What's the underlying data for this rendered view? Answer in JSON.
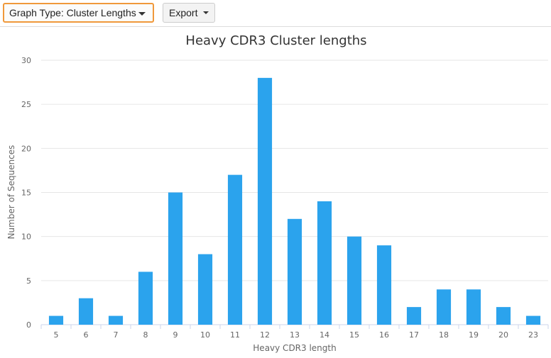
{
  "toolbar": {
    "graph_type_label": "Graph Type: Cluster Lengths",
    "export_label": "Export"
  },
  "chart_data": {
    "type": "bar",
    "title": "Heavy CDR3 Cluster lengths",
    "xlabel": "Heavy CDR3 length",
    "ylabel": "Number of Sequences",
    "categories": [
      "5",
      "6",
      "7",
      "8",
      "9",
      "10",
      "11",
      "12",
      "13",
      "14",
      "15",
      "16",
      "17",
      "18",
      "19",
      "20",
      "23"
    ],
    "values": [
      1,
      3,
      1,
      6,
      15,
      8,
      17,
      28,
      12,
      14,
      10,
      9,
      2,
      4,
      4,
      2,
      1
    ],
    "ylim": [
      0,
      30
    ],
    "yticks": [
      0,
      5,
      10,
      15,
      20,
      25,
      30
    ],
    "grid": true,
    "bar_color": "#2ba3ed"
  }
}
